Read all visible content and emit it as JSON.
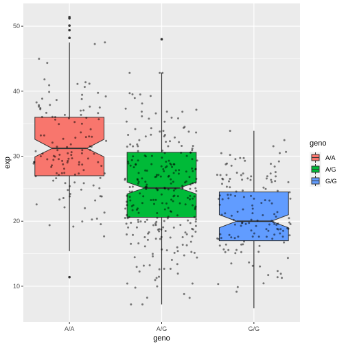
{
  "chart_data": {
    "type": "boxplot",
    "notched": true,
    "jitter_points": true,
    "xlabel": "geno",
    "ylabel": "exp",
    "categories": [
      "A/A",
      "A/G",
      "G/G"
    ],
    "y_ticks": [
      10,
      20,
      30,
      40,
      50
    ],
    "ylim": [
      4.5,
      53.5
    ],
    "grid": true,
    "legend": {
      "title": "geno",
      "position": "right",
      "entries": [
        "A/A",
        "A/G",
        "G/G"
      ]
    },
    "colors": {
      "A/A": "#F8766D",
      "A/G": "#00BA38",
      "G/G": "#619CFF",
      "panel": "#EBEBEB",
      "grid": "#FFFFFF"
    },
    "boxes": [
      {
        "category": "A/A",
        "min": 15.4,
        "q1": 27.0,
        "median": 31.2,
        "q3": 36.0,
        "max": 47.5,
        "notch_low": 29.9,
        "notch_high": 32.6
      },
      {
        "category": "A/G",
        "min": 7.2,
        "q1": 20.6,
        "median": 25.1,
        "q3": 30.6,
        "max": 42.8,
        "notch_low": 24.2,
        "notch_high": 26.0
      },
      {
        "category": "G/G",
        "min": 6.6,
        "q1": 17.0,
        "median": 20.0,
        "q3": 24.5,
        "max": 33.9,
        "notch_low": 19.0,
        "notch_high": 21.0
      }
    ],
    "outliers": [
      {
        "category": "A/A",
        "y": 51.2
      },
      {
        "category": "A/A",
        "y": 51.4
      },
      {
        "category": "A/A",
        "y": 50.1
      },
      {
        "category": "A/A",
        "y": 49.4
      },
      {
        "category": "A/A",
        "y": 48.2
      },
      {
        "category": "A/A",
        "y": 11.4
      },
      {
        "category": "A/G",
        "y": 48.0
      }
    ],
    "point_clouds": [
      {
        "category": "A/A",
        "n": 130,
        "mean": 31.2,
        "sd": 6.8,
        "min": 15.4,
        "max": 47.5
      },
      {
        "category": "A/G",
        "n": 280,
        "mean": 25.2,
        "sd": 7.0,
        "min": 7.2,
        "max": 42.8
      },
      {
        "category": "G/G",
        "n": 150,
        "mean": 20.6,
        "sd": 5.6,
        "min": 6.6,
        "max": 33.9
      }
    ]
  }
}
